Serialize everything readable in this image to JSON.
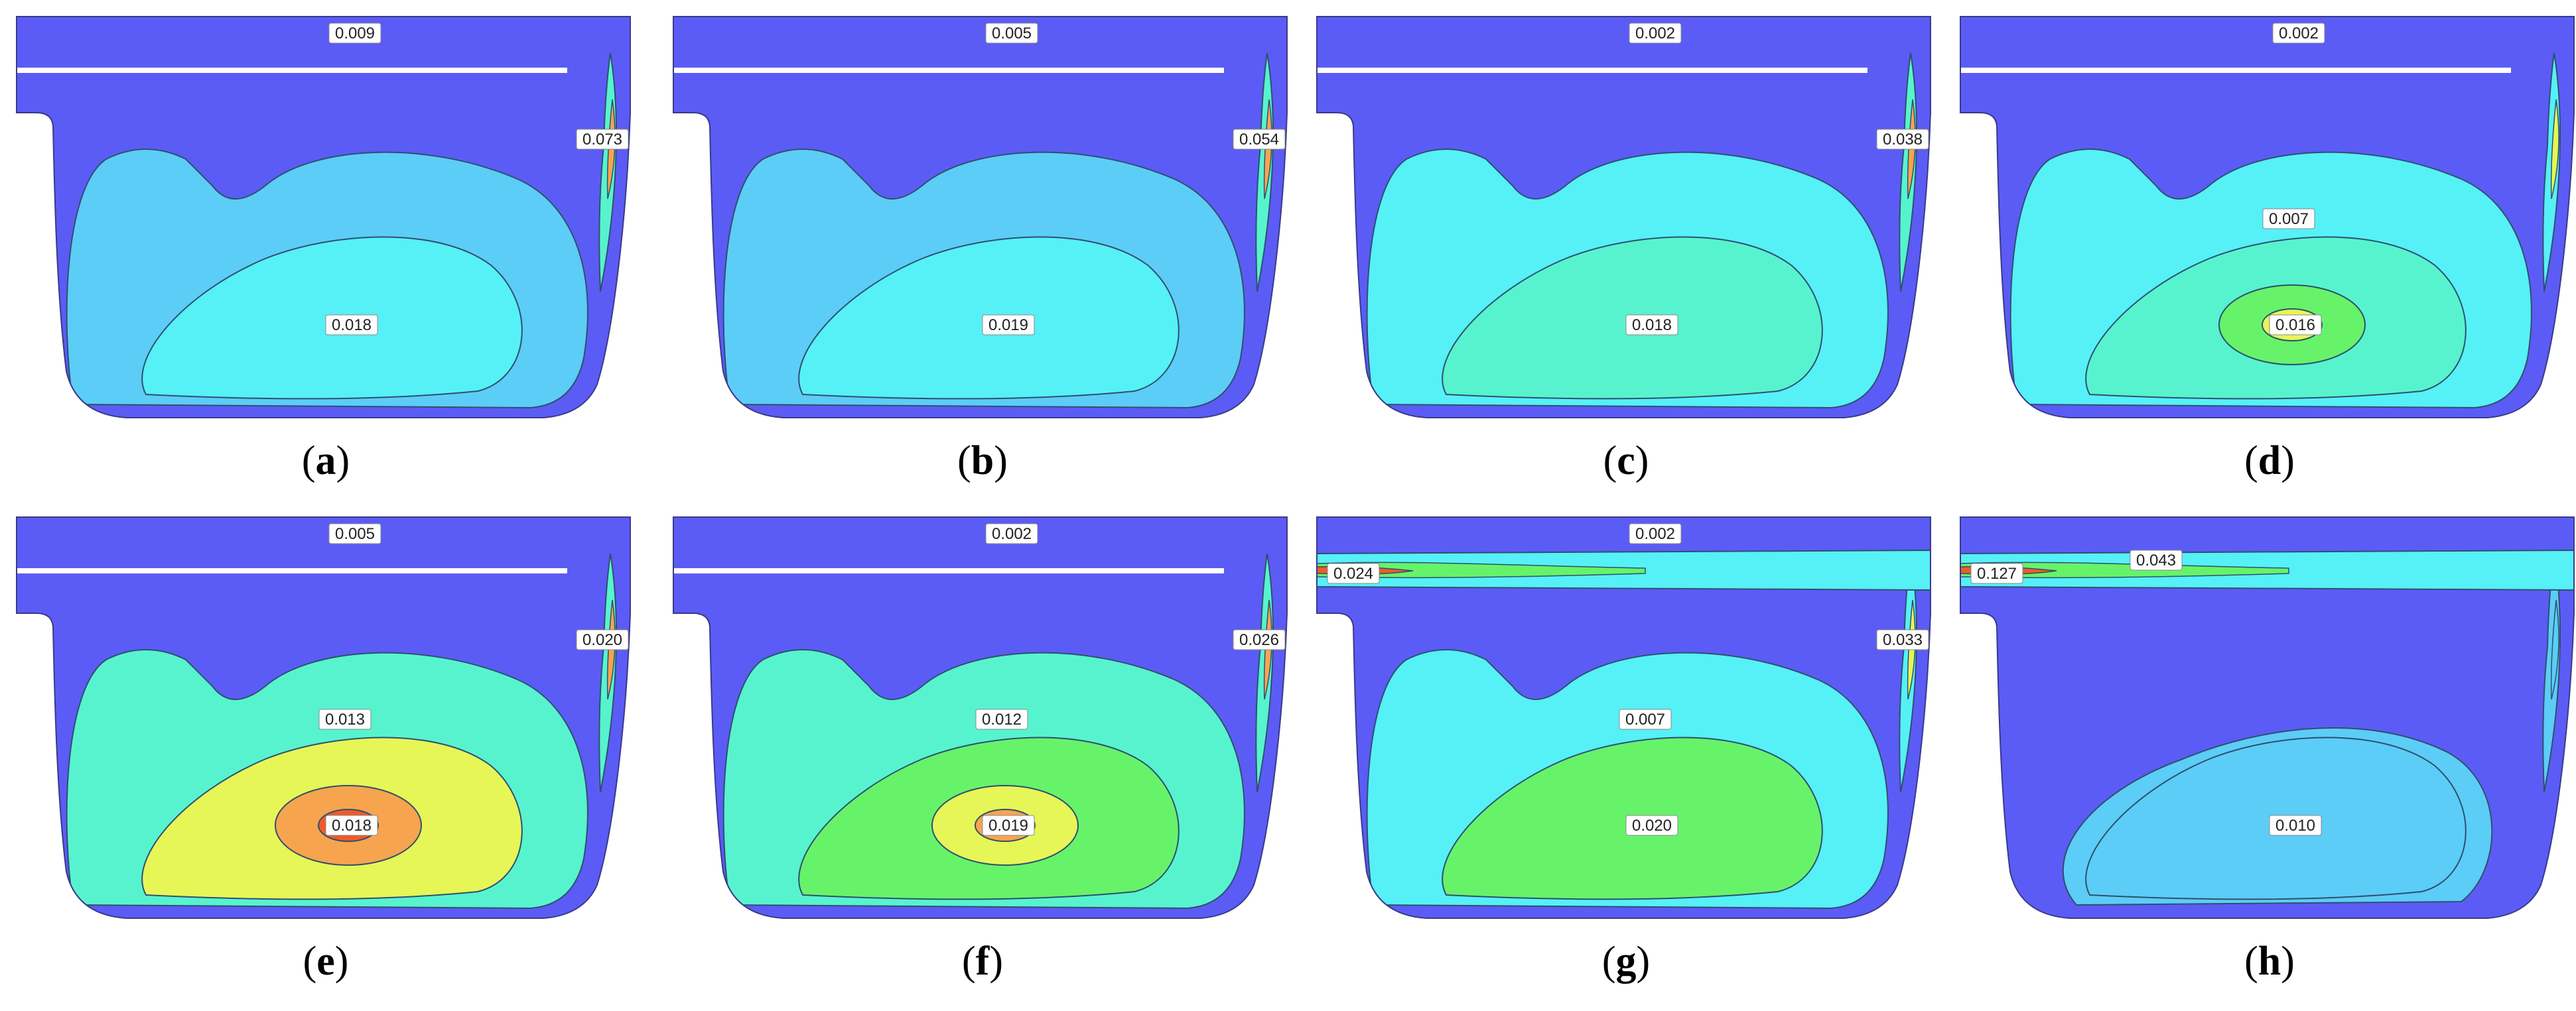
{
  "colors": {
    "level_0": "#5b5cf5",
    "level_1": "#5ccdf6",
    "level_2": "#56f0f7",
    "level_3": "#57f3cf",
    "level_4": "#66f36a",
    "level_5": "#e6f657",
    "level_6": "#f7a44f",
    "level_7": "#f05a2a",
    "contour_line": "#2f4f6f",
    "wall_gap": "#ffffff",
    "background": "#ffffff"
  },
  "panels": [
    {
      "id": "a",
      "caption_letter": "a",
      "labels": [
        {
          "text": "0.009",
          "pos": "top"
        },
        {
          "text": "0.073",
          "pos": "right"
        },
        {
          "text": "0.018",
          "pos": "core"
        }
      ],
      "levels": {
        "mid": 1,
        "core": 2,
        "inner": null,
        "right_hot": 6
      },
      "has_plate": true,
      "has_band": false
    },
    {
      "id": "b",
      "caption_letter": "b",
      "labels": [
        {
          "text": "0.005",
          "pos": "top"
        },
        {
          "text": "0.054",
          "pos": "right"
        },
        {
          "text": "0.019",
          "pos": "core"
        }
      ],
      "levels": {
        "mid": 1,
        "core": 2,
        "inner": null,
        "right_hot": 6
      },
      "has_plate": true,
      "has_band": false
    },
    {
      "id": "c",
      "caption_letter": "c",
      "labels": [
        {
          "text": "0.002",
          "pos": "top"
        },
        {
          "text": "0.038",
          "pos": "right"
        },
        {
          "text": "0.018",
          "pos": "core"
        }
      ],
      "levels": {
        "mid": 2,
        "core": 3,
        "inner": null,
        "right_hot": 6
      },
      "has_plate": true,
      "has_band": false
    },
    {
      "id": "d",
      "caption_letter": "d",
      "labels": [
        {
          "text": "0.002",
          "pos": "top"
        },
        {
          "text": "0.007",
          "pos": "mid"
        },
        {
          "text": "0.016",
          "pos": "core"
        }
      ],
      "levels": {
        "mid": 2,
        "core": 3,
        "inner": 4,
        "right_hot": 5
      },
      "has_plate": true,
      "has_band": false
    },
    {
      "id": "e",
      "caption_letter": "e",
      "labels": [
        {
          "text": "0.005",
          "pos": "top"
        },
        {
          "text": "0.020",
          "pos": "right"
        },
        {
          "text": "0.013",
          "pos": "mid"
        },
        {
          "text": "0.018",
          "pos": "core"
        }
      ],
      "levels": {
        "mid": 3,
        "core": 5,
        "inner": 6,
        "right_hot": 6
      },
      "has_plate": true,
      "has_band": false
    },
    {
      "id": "f",
      "caption_letter": "f",
      "labels": [
        {
          "text": "0.002",
          "pos": "top"
        },
        {
          "text": "0.026",
          "pos": "right"
        },
        {
          "text": "0.012",
          "pos": "mid"
        },
        {
          "text": "0.019",
          "pos": "core"
        }
      ],
      "levels": {
        "mid": 3,
        "core": 4,
        "inner": 5,
        "right_hot": 6
      },
      "has_plate": true,
      "has_band": false
    },
    {
      "id": "g",
      "caption_letter": "g",
      "labels": [
        {
          "text": "0.002",
          "pos": "top"
        },
        {
          "text": "0.024",
          "pos": "band_left"
        },
        {
          "text": "0.033",
          "pos": "right"
        },
        {
          "text": "0.007",
          "pos": "mid"
        },
        {
          "text": "0.020",
          "pos": "core"
        }
      ],
      "levels": {
        "mid": 2,
        "core": 4,
        "inner": null,
        "right_hot": 5
      },
      "has_plate": false,
      "has_band": true
    },
    {
      "id": "h",
      "caption_letter": "h",
      "labels": [
        {
          "text": "0.127",
          "pos": "band_left"
        },
        {
          "text": "0.043",
          "pos": "band_mid"
        },
        {
          "text": "0.010",
          "pos": "core"
        }
      ],
      "levels": {
        "mid": 0,
        "core": 1,
        "inner": null,
        "right_hot": 1
      },
      "has_plate": false,
      "has_band": true
    }
  ]
}
